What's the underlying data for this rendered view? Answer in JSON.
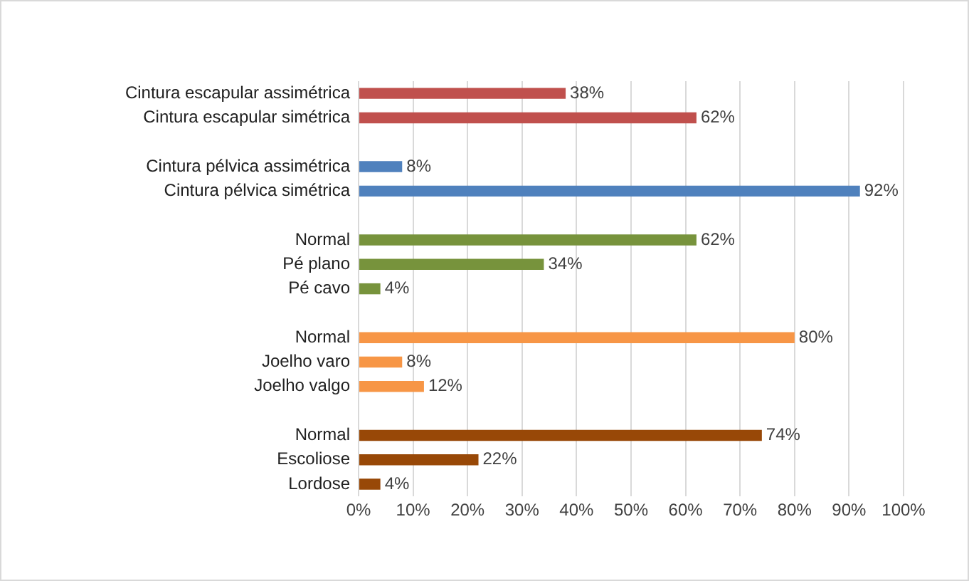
{
  "chart_data": {
    "type": "bar",
    "orientation": "horizontal",
    "categories": [
      "Cintura escapular assimétrica",
      "Cintura escapular simétrica",
      null,
      "Cintura pélvica assimétrica",
      "Cintura pélvica simétrica",
      null,
      "Normal",
      "Pé plano",
      "Pé cavo",
      null,
      "Normal",
      "Joelho varo",
      "Joelho valgo",
      null,
      "Normal",
      "Escoliose",
      "Lordose"
    ],
    "values": [
      38,
      62,
      null,
      8,
      92,
      null,
      62,
      34,
      4,
      null,
      80,
      8,
      12,
      null,
      74,
      22,
      4
    ],
    "value_labels": [
      "38%",
      "62%",
      null,
      "8%",
      "92%",
      null,
      "62%",
      "34%",
      "4%",
      null,
      "80%",
      "8%",
      "12%",
      null,
      "74%",
      "22%",
      "4%"
    ],
    "colors": [
      "#c0504d",
      "#c0504d",
      null,
      "#4f81bd",
      "#4f81bd",
      null,
      "#77933c",
      "#77933c",
      "#77933c",
      null,
      "#f79646",
      "#f79646",
      "#f79646",
      null,
      "#984807",
      "#984807",
      "#984807"
    ],
    "xlim": [
      0,
      100
    ],
    "xticks": [
      {
        "value": 0,
        "label": "0%"
      },
      {
        "value": 10,
        "label": "10%"
      },
      {
        "value": 20,
        "label": "20%"
      },
      {
        "value": 30,
        "label": "30%"
      },
      {
        "value": 40,
        "label": "40%"
      },
      {
        "value": 50,
        "label": "50%"
      },
      {
        "value": 60,
        "label": "60%"
      },
      {
        "value": 70,
        "label": "70%"
      },
      {
        "value": 80,
        "label": "80%"
      },
      {
        "value": 90,
        "label": "90%"
      },
      {
        "value": 100,
        "label": "100%"
      }
    ],
    "grid": "x",
    "legend": false
  }
}
